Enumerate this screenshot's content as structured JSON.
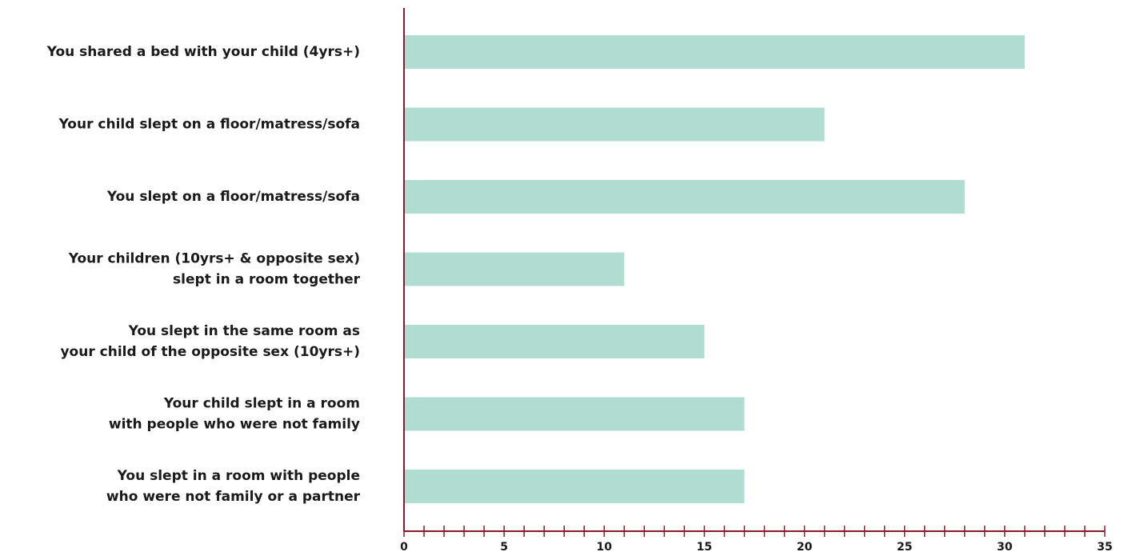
{
  "chart_data": {
    "type": "bar",
    "orientation": "horizontal",
    "categories": [
      [
        "You shared a bed with your child (4yrs+)"
      ],
      [
        "Your child slept on a floor/matress/sofa"
      ],
      [
        "You slept on a floor/matress/sofa"
      ],
      [
        "Your children (10yrs+ & opposite sex)",
        "slept in a room together"
      ],
      [
        "You slept in the same room as",
        "your child of the opposite sex (10yrs+)"
      ],
      [
        "Your child slept in a room",
        "with people who were not family"
      ],
      [
        "You slept in a room with people",
        "who were not family or a partner"
      ]
    ],
    "values": [
      31,
      21,
      28,
      11,
      15,
      17,
      17
    ],
    "xlim": [
      0,
      35
    ],
    "xticks": [
      0,
      5,
      10,
      15,
      20,
      25,
      30,
      35
    ],
    "minor_tick_step": 1,
    "title": "",
    "xlabel": "",
    "ylabel": "",
    "grid": false,
    "colors": {
      "bar": "#b0dcd1",
      "axis": "#8b1a2b",
      "text": "#1a1a1a"
    }
  }
}
